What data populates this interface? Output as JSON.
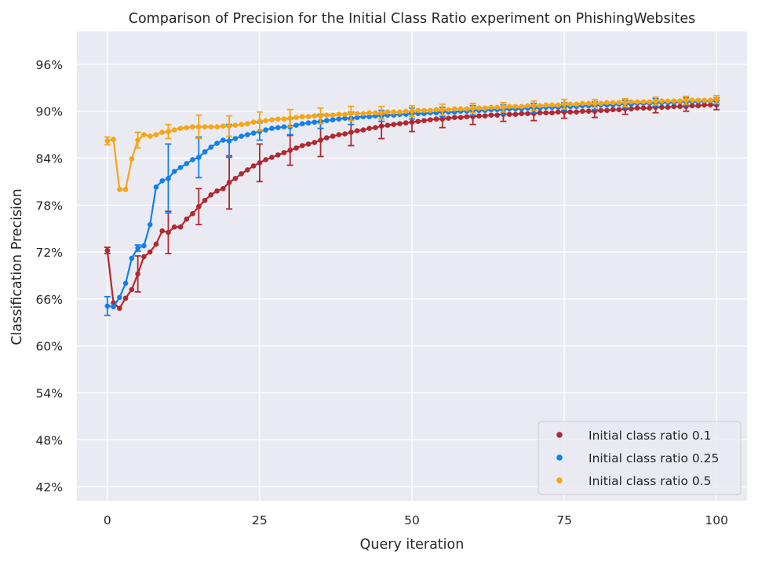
{
  "chart_data": {
    "type": "line",
    "title": "Comparison of Precision for the Initial Class Ratio experiment on PhishingWebsites",
    "xlabel": "Query iteration",
    "ylabel": "Classification Precision",
    "xlim": [
      -5,
      105
    ],
    "ylim": [
      40.2,
      100.2
    ],
    "xticks": [
      0,
      25,
      50,
      75,
      100
    ],
    "xtick_labels": [
      "0",
      "25",
      "50",
      "75",
      "100"
    ],
    "yticks": [
      42,
      48,
      54,
      60,
      66,
      72,
      78,
      84,
      90,
      96
    ],
    "ytick_labels": [
      "42%",
      "48%",
      "54%",
      "60%",
      "66%",
      "72%",
      "78%",
      "84%",
      "90%",
      "96%"
    ],
    "grid": true,
    "legend_position": "lower-right",
    "errorbar_every": 5,
    "series": [
      {
        "name": "Initial class ratio 0.1",
        "color": "#b2282f",
        "x": [
          0,
          1,
          2,
          3,
          4,
          5,
          6,
          7,
          8,
          9,
          10,
          11,
          12,
          13,
          14,
          15,
          16,
          17,
          18,
          19,
          20,
          21,
          22,
          23,
          24,
          25,
          26,
          27,
          28,
          29,
          30,
          31,
          32,
          33,
          34,
          35,
          36,
          37,
          38,
          39,
          40,
          41,
          42,
          43,
          44,
          45,
          46,
          47,
          48,
          49,
          50,
          51,
          52,
          53,
          54,
          55,
          56,
          57,
          58,
          59,
          60,
          61,
          62,
          63,
          64,
          65,
          66,
          67,
          68,
          69,
          70,
          71,
          72,
          73,
          74,
          75,
          76,
          77,
          78,
          79,
          80,
          81,
          82,
          83,
          84,
          85,
          86,
          87,
          88,
          89,
          90,
          91,
          92,
          93,
          94,
          95,
          96,
          97,
          98,
          99,
          100
        ],
        "y": [
          72.2,
          65.5,
          64.8,
          66.1,
          67.2,
          69.2,
          71.4,
          72.0,
          73.0,
          74.7,
          74.5,
          75.2,
          75.2,
          76.2,
          76.9,
          77.8,
          78.6,
          79.3,
          79.8,
          80.1,
          80.9,
          81.4,
          82.0,
          82.5,
          83.0,
          83.4,
          83.8,
          84.1,
          84.4,
          84.7,
          85.0,
          85.3,
          85.6,
          85.8,
          86.0,
          86.3,
          86.6,
          86.8,
          87.0,
          87.1,
          87.3,
          87.5,
          87.6,
          87.8,
          87.9,
          88.1,
          88.2,
          88.3,
          88.4,
          88.5,
          88.6,
          88.7,
          88.8,
          88.9,
          89.0,
          89.0,
          89.1,
          89.2,
          89.2,
          89.3,
          89.3,
          89.4,
          89.4,
          89.5,
          89.5,
          89.6,
          89.6,
          89.6,
          89.7,
          89.7,
          89.7,
          89.8,
          89.8,
          89.8,
          89.9,
          89.9,
          89.9,
          89.9,
          90.0,
          90.0,
          90.0,
          90.1,
          90.1,
          90.2,
          90.2,
          90.3,
          90.3,
          90.4,
          90.4,
          90.4,
          90.5,
          90.5,
          90.5,
          90.6,
          90.6,
          90.6,
          90.7,
          90.7,
          90.8,
          90.8,
          90.8
        ],
        "yerr": [
          0.4,
          0.4,
          0.4,
          0.4,
          0.4,
          2.3,
          0.4,
          0.4,
          0.4,
          0.4,
          2.7,
          0.4,
          0.4,
          0.4,
          0.4,
          2.3,
          0.4,
          0.4,
          0.4,
          0.4,
          3.4,
          0.4,
          0.4,
          0.4,
          0.4,
          2.4,
          0.4,
          0.4,
          0.4,
          0.4,
          1.9,
          0.4,
          0.4,
          0.4,
          0.4,
          2.1,
          0.4,
          0.4,
          0.4,
          0.4,
          1.7,
          0.4,
          0.4,
          0.4,
          0.4,
          1.6,
          0.4,
          0.4,
          0.4,
          0.4,
          1.2,
          0.4,
          0.4,
          0.4,
          0.4,
          1.1,
          0.4,
          0.4,
          0.4,
          0.4,
          1.0,
          0.4,
          0.4,
          0.4,
          0.4,
          0.9,
          0.4,
          0.4,
          0.4,
          0.4,
          0.9,
          0.4,
          0.4,
          0.4,
          0.4,
          0.8,
          0.4,
          0.4,
          0.4,
          0.4,
          0.8,
          0.4,
          0.4,
          0.4,
          0.4,
          0.7,
          0.4,
          0.4,
          0.4,
          0.4,
          0.7,
          0.4,
          0.4,
          0.4,
          0.4,
          0.6,
          0.4,
          0.4,
          0.4,
          0.4,
          0.6
        ]
      },
      {
        "name": "Initial class ratio 0.25",
        "color": "#1180f0",
        "x": [
          0,
          1,
          2,
          3,
          4,
          5,
          6,
          7,
          8,
          9,
          10,
          11,
          12,
          13,
          14,
          15,
          16,
          17,
          18,
          19,
          20,
          21,
          22,
          23,
          24,
          25,
          26,
          27,
          28,
          29,
          30,
          31,
          32,
          33,
          34,
          35,
          36,
          37,
          38,
          39,
          40,
          41,
          42,
          43,
          44,
          45,
          46,
          47,
          48,
          49,
          50,
          51,
          52,
          53,
          54,
          55,
          56,
          57,
          58,
          59,
          60,
          61,
          62,
          63,
          64,
          65,
          66,
          67,
          68,
          69,
          70,
          71,
          72,
          73,
          74,
          75,
          76,
          77,
          78,
          79,
          80,
          81,
          82,
          83,
          84,
          85,
          86,
          87,
          88,
          89,
          90,
          91,
          92,
          93,
          94,
          95,
          96,
          97,
          98,
          99,
          100
        ],
        "y": [
          65.1,
          65.0,
          66.2,
          68.0,
          71.2,
          72.5,
          72.8,
          75.5,
          80.3,
          81.1,
          81.4,
          82.3,
          82.8,
          83.3,
          83.8,
          84.1,
          84.8,
          85.4,
          85.9,
          86.3,
          86.2,
          86.5,
          86.8,
          87.0,
          87.2,
          87.4,
          87.6,
          87.8,
          87.9,
          88.0,
          88.0,
          88.2,
          88.4,
          88.5,
          88.6,
          88.7,
          88.8,
          88.9,
          89.0,
          89.1,
          89.1,
          89.2,
          89.3,
          89.3,
          89.4,
          89.4,
          89.5,
          89.5,
          89.6,
          89.6,
          89.7,
          89.7,
          89.7,
          89.8,
          89.8,
          89.9,
          89.9,
          89.9,
          90.0,
          90.0,
          90.1,
          90.1,
          90.1,
          90.2,
          90.2,
          90.2,
          90.3,
          90.3,
          90.3,
          90.4,
          90.4,
          90.4,
          90.5,
          90.5,
          90.5,
          90.6,
          90.6,
          90.6,
          90.7,
          90.7,
          90.7,
          90.8,
          90.8,
          90.8,
          90.9,
          90.9,
          90.9,
          91.0,
          91.0,
          91.0,
          91.1,
          91.1,
          91.1,
          91.1,
          91.2,
          91.2,
          91.2,
          91.2,
          91.3,
          91.3,
          91.3
        ],
        "yerr": [
          1.2,
          0.4,
          0.4,
          0.4,
          0.4,
          0.4,
          0.4,
          0.4,
          0.4,
          0.4,
          4.4,
          0.4,
          0.4,
          0.4,
          0.4,
          2.6,
          0.4,
          0.4,
          0.4,
          0.4,
          2.1,
          0.4,
          0.4,
          0.4,
          0.4,
          1.1,
          0.4,
          0.4,
          0.4,
          0.4,
          1.0,
          0.4,
          0.4,
          0.4,
          0.4,
          0.9,
          0.4,
          0.4,
          0.4,
          0.4,
          0.8,
          0.4,
          0.4,
          0.4,
          0.4,
          0.7,
          0.4,
          0.4,
          0.4,
          0.4,
          0.7,
          0.4,
          0.4,
          0.4,
          0.4,
          0.6,
          0.4,
          0.4,
          0.4,
          0.4,
          0.6,
          0.4,
          0.4,
          0.4,
          0.4,
          0.6,
          0.4,
          0.4,
          0.4,
          0.4,
          0.6,
          0.4,
          0.4,
          0.4,
          0.4,
          0.5,
          0.4,
          0.4,
          0.4,
          0.4,
          0.5,
          0.4,
          0.4,
          0.4,
          0.4,
          0.5,
          0.4,
          0.4,
          0.4,
          0.4,
          0.5,
          0.4,
          0.4,
          0.4,
          0.4,
          0.5,
          0.4,
          0.4,
          0.4,
          0.4,
          0.4
        ]
      },
      {
        "name": "Initial class ratio 0.5",
        "color": "#f7a512",
        "x": [
          0,
          1,
          2,
          3,
          4,
          5,
          6,
          7,
          8,
          9,
          10,
          11,
          12,
          13,
          14,
          15,
          16,
          17,
          18,
          19,
          20,
          21,
          22,
          23,
          24,
          25,
          26,
          27,
          28,
          29,
          30,
          31,
          32,
          33,
          34,
          35,
          36,
          37,
          38,
          39,
          40,
          41,
          42,
          43,
          44,
          45,
          46,
          47,
          48,
          49,
          50,
          51,
          52,
          53,
          54,
          55,
          56,
          57,
          58,
          59,
          60,
          61,
          62,
          63,
          64,
          65,
          66,
          67,
          68,
          69,
          70,
          71,
          72,
          73,
          74,
          75,
          76,
          77,
          78,
          79,
          80,
          81,
          82,
          83,
          84,
          85,
          86,
          87,
          88,
          89,
          90,
          91,
          92,
          93,
          94,
          95,
          96,
          97,
          98,
          99,
          100
        ],
        "y": [
          86.2,
          86.4,
          80.0,
          80.0,
          83.9,
          86.3,
          87.0,
          86.8,
          87.0,
          87.3,
          87.4,
          87.6,
          87.8,
          87.9,
          88.0,
          88.0,
          88.0,
          88.0,
          88.0,
          88.1,
          88.1,
          88.2,
          88.3,
          88.4,
          88.6,
          88.7,
          88.8,
          88.9,
          89.0,
          89.0,
          89.1,
          89.2,
          89.3,
          89.3,
          89.4,
          89.4,
          89.5,
          89.5,
          89.6,
          89.6,
          89.7,
          89.7,
          89.7,
          89.8,
          89.8,
          89.8,
          89.9,
          89.9,
          89.9,
          90.0,
          90.0,
          90.1,
          90.1,
          90.1,
          90.2,
          90.2,
          90.2,
          90.3,
          90.3,
          90.3,
          90.4,
          90.4,
          90.4,
          90.5,
          90.5,
          90.5,
          90.6,
          90.6,
          90.6,
          90.7,
          90.7,
          90.7,
          90.8,
          90.8,
          90.8,
          90.9,
          90.9,
          90.9,
          91.0,
          91.0,
          91.0,
          91.0,
          91.1,
          91.1,
          91.1,
          91.1,
          91.2,
          91.2,
          91.2,
          91.2,
          91.3,
          91.3,
          91.3,
          91.3,
          91.3,
          91.4,
          91.4,
          91.4,
          91.4,
          91.4,
          91.5
        ],
        "yerr": [
          0.5,
          0.4,
          0.4,
          0.4,
          0.4,
          1.0,
          0.4,
          0.4,
          0.4,
          0.4,
          0.9,
          0.4,
          0.4,
          0.4,
          0.4,
          1.5,
          0.4,
          0.4,
          0.4,
          0.4,
          1.3,
          0.4,
          0.4,
          0.4,
          0.4,
          1.2,
          0.4,
          0.4,
          0.4,
          0.4,
          1.1,
          0.4,
          0.4,
          0.4,
          0.4,
          1.0,
          0.4,
          0.4,
          0.4,
          0.4,
          0.9,
          0.4,
          0.4,
          0.4,
          0.4,
          0.8,
          0.4,
          0.4,
          0.4,
          0.4,
          0.7,
          0.4,
          0.4,
          0.4,
          0.4,
          0.7,
          0.4,
          0.4,
          0.4,
          0.4,
          0.6,
          0.4,
          0.4,
          0.4,
          0.4,
          0.6,
          0.4,
          0.4,
          0.4,
          0.4,
          0.6,
          0.4,
          0.4,
          0.4,
          0.4,
          0.6,
          0.4,
          0.4,
          0.4,
          0.4,
          0.5,
          0.4,
          0.4,
          0.4,
          0.4,
          0.5,
          0.4,
          0.4,
          0.4,
          0.4,
          0.5,
          0.4,
          0.4,
          0.4,
          0.4,
          0.5,
          0.4,
          0.4,
          0.4,
          0.4,
          0.5
        ]
      }
    ]
  },
  "style": {
    "plot_background": "#eaeaf2",
    "grid_color": "#ffffff",
    "text_color": "#262626"
  }
}
